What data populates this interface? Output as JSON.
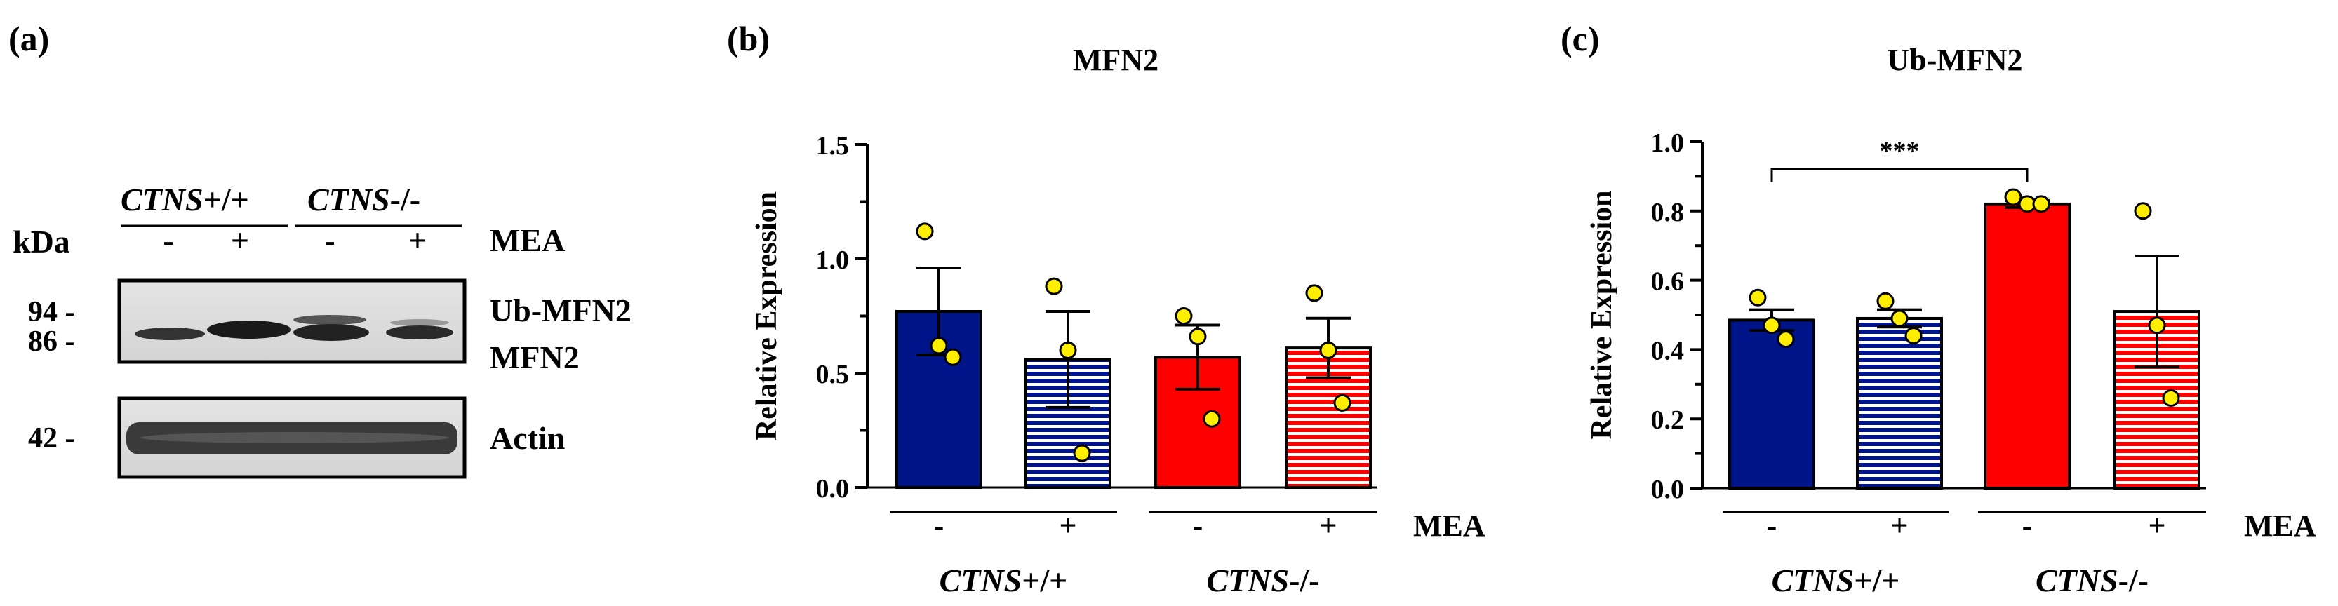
{
  "panels": {
    "a": {
      "letter": "(a)",
      "kda_label": "kDa",
      "group1": {
        "italic": "CTNS",
        "suffix": "+/+"
      },
      "group2": {
        "italic": "CTNS",
        "suffix": "-/-"
      },
      "lane_signs": [
        "-",
        "+",
        "-",
        "+"
      ],
      "treatment_label": "MEA",
      "markers": [
        "94 -",
        "86 -",
        "42 -"
      ],
      "band_labels": {
        "ub": "Ub-MFN2",
        "mfn2": "MFN2",
        "actin": "Actin"
      }
    },
    "b": {
      "letter": "(b)"
    },
    "c": {
      "letter": "(c)"
    }
  },
  "chart_data": [
    {
      "type": "bar",
      "title": "MFN2",
      "ylabel": "Relative Expression",
      "xlabel": "",
      "ylim": [
        0,
        1.5
      ],
      "yticks": [
        "0.0",
        "0.5",
        "1.0",
        "1.5"
      ],
      "ytick_values": [
        0,
        0.5,
        1.0,
        1.5
      ],
      "categories": [
        "-",
        "+",
        "-",
        "+"
      ],
      "treatment_label": "MEA",
      "groups": [
        {
          "italic": "CTNS",
          "suffix": "+/+"
        },
        {
          "italic": "CTNS",
          "suffix": "-/-"
        }
      ],
      "bar_colors": [
        "#001489",
        "#001489",
        "#ff0000",
        "#ff0000"
      ],
      "bar_patterns": [
        "solid",
        "striped",
        "solid",
        "striped"
      ],
      "values": [
        0.77,
        0.56,
        0.57,
        0.61
      ],
      "sem": [
        0.19,
        0.21,
        0.14,
        0.13
      ],
      "points": [
        [
          1.12,
          0.62,
          0.57
        ],
        [
          0.88,
          0.6,
          0.15
        ],
        [
          0.75,
          0.66,
          0.3
        ],
        [
          0.85,
          0.6,
          0.37
        ]
      ],
      "significance": null
    },
    {
      "type": "bar",
      "title": "Ub-MFN2",
      "ylabel": "Relative Expression",
      "xlabel": "",
      "ylim": [
        0,
        1.0
      ],
      "yticks": [
        "0.0",
        "0.2",
        "0.4",
        "0.6",
        "0.8",
        "1.0"
      ],
      "ytick_values": [
        0,
        0.2,
        0.4,
        0.6,
        0.8,
        1.0
      ],
      "categories": [
        "-",
        "+",
        "-",
        "+"
      ],
      "treatment_label": "MEA",
      "groups": [
        {
          "italic": "CTNS",
          "suffix": "+/+"
        },
        {
          "italic": "CTNS",
          "suffix": "-/-"
        }
      ],
      "bar_colors": [
        "#001489",
        "#001489",
        "#ff0000",
        "#ff0000"
      ],
      "bar_patterns": [
        "solid",
        "striped",
        "solid",
        "striped"
      ],
      "values": [
        0.485,
        0.49,
        0.82,
        0.51
      ],
      "sem": [
        0.03,
        0.025,
        0.01,
        0.16
      ],
      "points": [
        [
          0.55,
          0.47,
          0.43
        ],
        [
          0.54,
          0.49,
          0.44
        ],
        [
          0.84,
          0.82,
          0.82
        ],
        [
          0.8,
          0.47,
          0.26
        ]
      ],
      "significance": {
        "from": 0,
        "to": 2,
        "label": "***",
        "y": 0.92
      }
    }
  ]
}
